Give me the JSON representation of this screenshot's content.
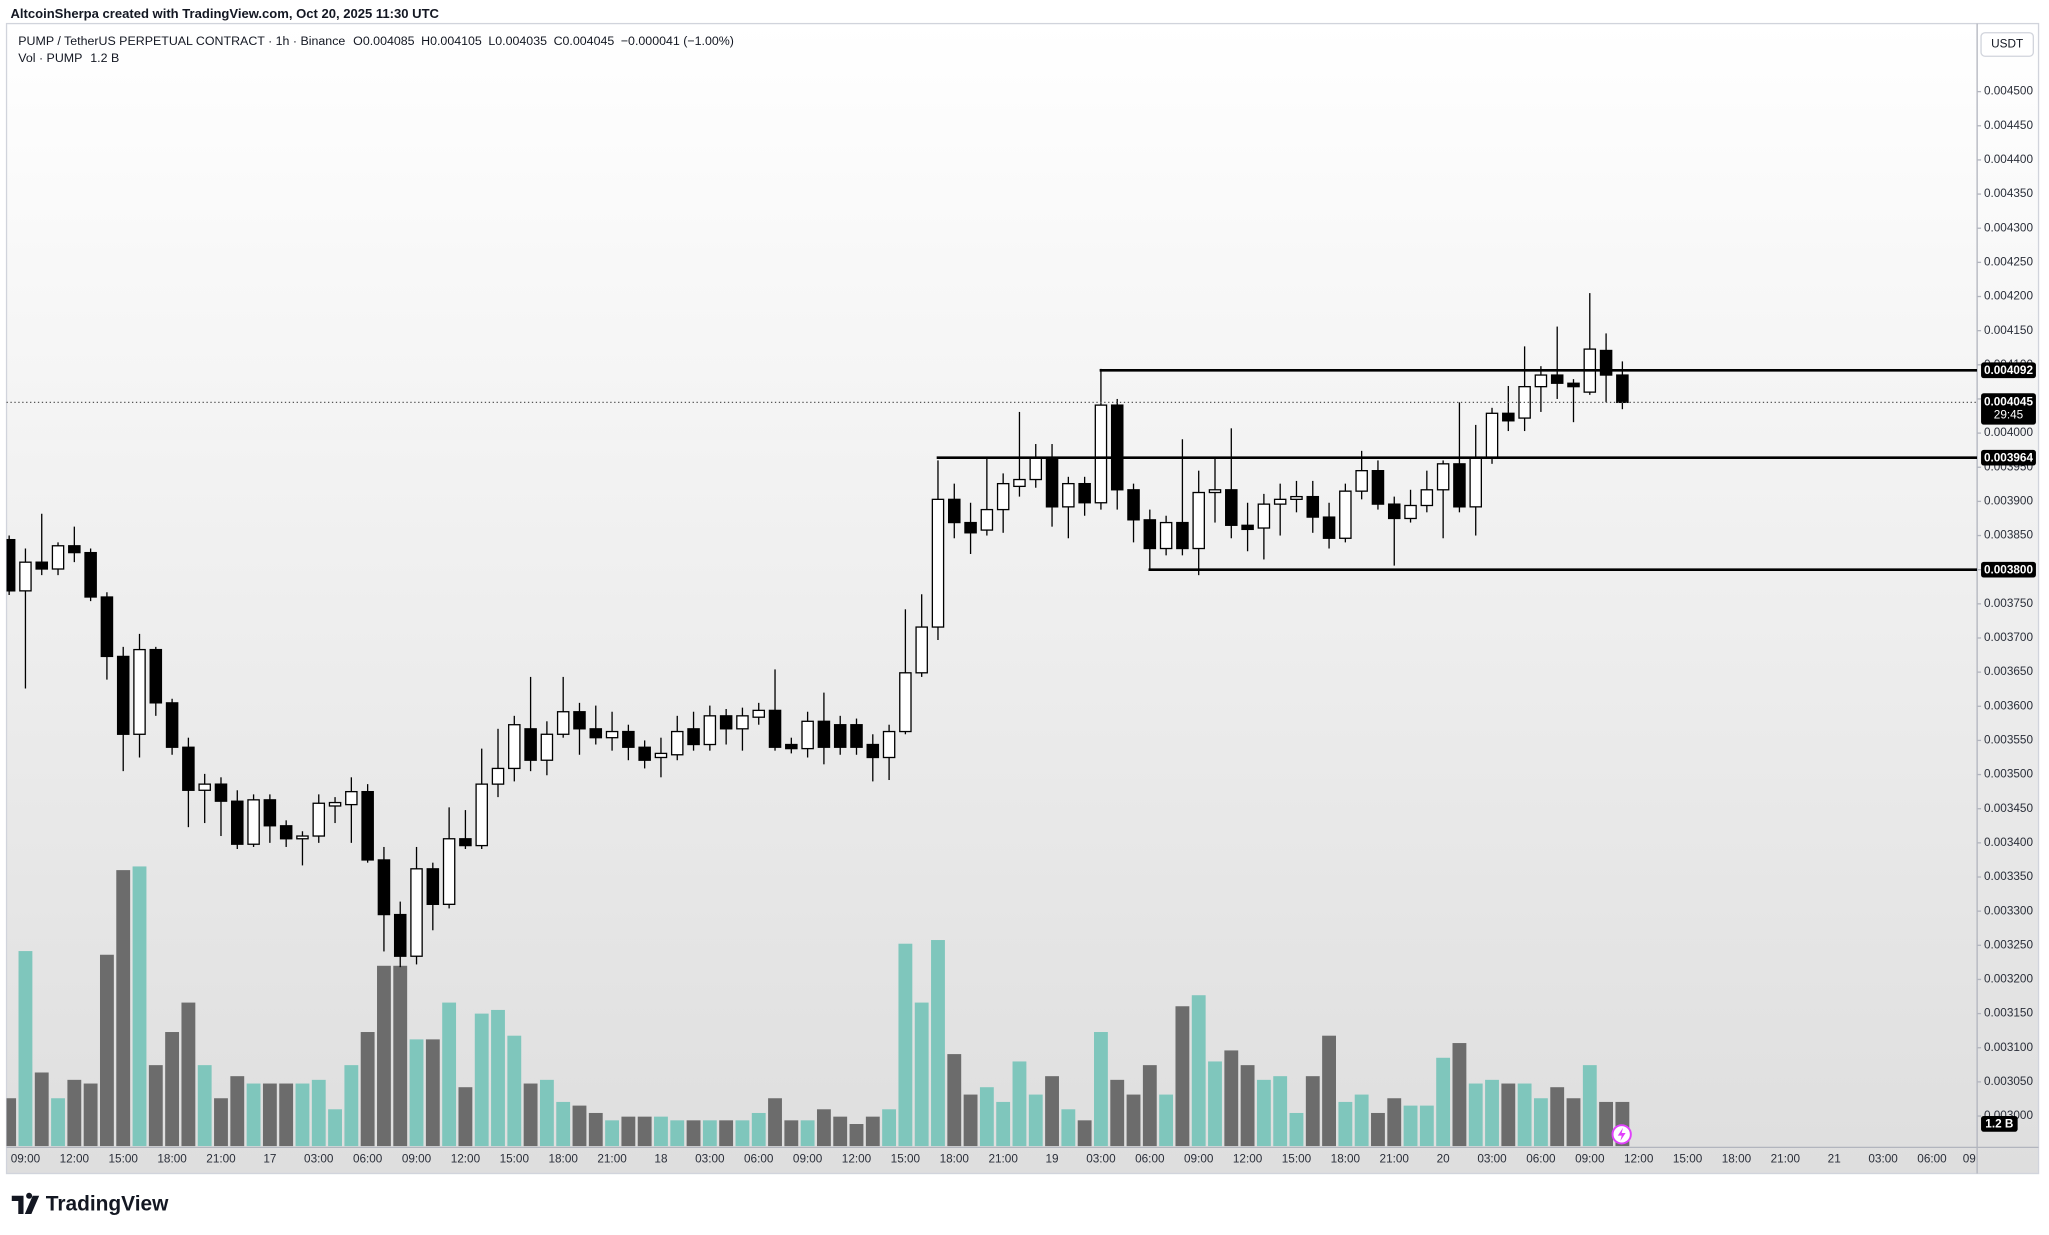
{
  "header": {
    "creator": "AltcoinSherpa created with TradingView.com, Oct 20, 2025 11:30 UTC",
    "symbol": "PUMP / TetherUS PERPETUAL CONTRACT · 1h · Binance",
    "o": "O",
    "h": "H",
    "l": "L",
    "c": "C",
    "change": "−0.000041 (−1.00%)",
    "volume_title": "Vol · PUMP",
    "currency": "USDT",
    "countdown": "29:45"
  },
  "footer": {
    "brand": "TradingView"
  },
  "chart_data": {
    "type": "candlestick",
    "grid": false,
    "up_color": "#ffffff",
    "down_color": "#000000",
    "wick_color": "#000000",
    "volume_up_color": "#7fc6bc",
    "volume_down_color": "#6c6c6c",
    "ylim": [
      0.002956,
      0.004592
    ],
    "yticks": [
      {
        "value": 0.0045,
        "label": "0.004500"
      },
      {
        "value": 0.00445,
        "label": "0.004450"
      },
      {
        "value": 0.0044,
        "label": "0.004400"
      },
      {
        "value": 0.00435,
        "label": "0.004350"
      },
      {
        "value": 0.0043,
        "label": "0.004300"
      },
      {
        "value": 0.00425,
        "label": "0.004250"
      },
      {
        "value": 0.0042,
        "label": "0.004200"
      },
      {
        "value": 0.00415,
        "label": "0.004150"
      },
      {
        "value": 0.0041,
        "label": "0.004100"
      },
      {
        "value": 0.00405,
        "label": "0.004050"
      },
      {
        "value": 0.004,
        "label": "0.004000"
      },
      {
        "value": 0.00395,
        "label": "0.003950"
      },
      {
        "value": 0.0039,
        "label": "0.003900"
      },
      {
        "value": 0.00385,
        "label": "0.003850"
      },
      {
        "value": 0.0038,
        "label": "0.003800"
      },
      {
        "value": 0.00375,
        "label": "0.003750"
      },
      {
        "value": 0.0037,
        "label": "0.003700"
      },
      {
        "value": 0.00365,
        "label": "0.003650"
      },
      {
        "value": 0.0036,
        "label": "0.003600"
      },
      {
        "value": 0.00355,
        "label": "0.003550"
      },
      {
        "value": 0.0035,
        "label": "0.003500"
      },
      {
        "value": 0.00345,
        "label": "0.003450"
      },
      {
        "value": 0.0034,
        "label": "0.003400"
      },
      {
        "value": 0.00335,
        "label": "0.003350"
      },
      {
        "value": 0.0033,
        "label": "0.003300"
      },
      {
        "value": 0.00325,
        "label": "0.003250"
      },
      {
        "value": 0.0032,
        "label": "0.003200"
      },
      {
        "value": 0.00315,
        "label": "0.003150"
      },
      {
        "value": 0.0031,
        "label": "0.003100"
      },
      {
        "value": 0.00305,
        "label": "0.003050"
      },
      {
        "value": 0.003,
        "label": "0.003000"
      }
    ],
    "categories": [
      null,
      "09:00",
      null,
      null,
      "12:00",
      null,
      null,
      "15:00",
      null,
      null,
      "18:00",
      null,
      null,
      "21:00",
      null,
      null,
      "17",
      null,
      null,
      "03:00",
      null,
      null,
      "06:00",
      null,
      null,
      "09:00",
      null,
      null,
      "12:00",
      null,
      null,
      "15:00",
      null,
      null,
      "18:00",
      null,
      null,
      "21:00",
      null,
      null,
      "18",
      null,
      null,
      "03:00",
      null,
      null,
      "06:00",
      null,
      null,
      "09:00",
      null,
      null,
      "12:00",
      null,
      null,
      "15:00",
      null,
      null,
      "18:00",
      null,
      null,
      "21:00",
      null,
      null,
      "19",
      null,
      null,
      "03:00",
      null,
      null,
      "06:00",
      null,
      null,
      "09:00",
      null,
      null,
      "12:00",
      null,
      null,
      "15:00",
      null,
      null,
      "18:00",
      null,
      null,
      "21:00",
      null,
      null,
      "20",
      null,
      null,
      "03:00",
      null,
      null,
      "06:00",
      null,
      null,
      "09:00",
      null,
      null,
      "12:00",
      null,
      null,
      "15:00",
      null,
      null,
      "18:00",
      null,
      null,
      "21:00",
      null,
      null,
      "21",
      null,
      null,
      "03:00",
      null,
      null,
      "06:00",
      null,
      null,
      "09"
    ],
    "open": [
      0.003844,
      0.003769,
      0.003811,
      0.003801,
      0.003835,
      0.003825,
      0.00376,
      0.003673,
      0.003559,
      0.003683,
      0.003605,
      0.00354,
      0.003477,
      0.003486,
      0.003461,
      0.003398,
      0.003463,
      0.003425,
      0.003406,
      0.00341,
      0.003454,
      0.003456,
      0.003475,
      0.003375,
      0.003295,
      0.003234,
      0.003362,
      0.00331,
      0.003406,
      0.003396,
      0.003486,
      0.003509,
      0.003567,
      0.003521,
      0.003559,
      0.003592,
      0.003567,
      0.003554,
      0.003563,
      0.00354,
      0.003525,
      0.003529,
      0.003567,
      0.003544,
      0.003586,
      0.003567,
      0.003584,
      0.003594,
      0.003544,
      0.003538,
      0.003578,
      0.003573,
      0.003573,
      0.003544,
      0.003525,
      0.003563,
      0.003649,
      0.003716,
      0.003903,
      0.003869,
      0.003858,
      0.003888,
      0.003922,
      0.003932,
      0.003964,
      0.003892,
      0.003926,
      0.003898,
      0.004041,
      0.003917,
      0.003873,
      0.003831,
      0.003869,
      0.003831,
      0.003913,
      0.003917,
      0.003865,
      0.003861,
      0.003896,
      0.003903,
      0.003907,
      0.003877,
      0.003846,
      0.003915,
      0.003945,
      0.003896,
      0.003875,
      0.003894,
      0.003917,
      0.003955,
      0.003892,
      0.003964,
      0.004029,
      0.004022,
      0.004068,
      0.004085,
      0.004073,
      0.00406,
      0.004121,
      0.004085,
      null,
      null,
      null,
      null,
      null,
      null,
      null,
      null,
      null,
      null,
      null,
      null,
      null,
      null,
      null,
      null,
      null,
      null,
      null,
      null,
      null,
      null
    ],
    "high": [
      0.00385,
      0.003831,
      0.003882,
      0.00384,
      0.003863,
      0.003831,
      0.003767,
      0.003687,
      0.003706,
      0.003687,
      0.003611,
      0.003554,
      0.003501,
      0.003496,
      0.003477,
      0.003471,
      0.003471,
      0.003433,
      0.003417,
      0.003471,
      0.003467,
      0.003496,
      0.003486,
      0.003394,
      0.003314,
      0.003394,
      0.003371,
      0.003452,
      0.003448,
      0.003538,
      0.003567,
      0.003586,
      0.003643,
      0.003578,
      0.003643,
      0.003605,
      0.003601,
      0.003592,
      0.003573,
      0.00355,
      0.003554,
      0.003586,
      0.003592,
      0.003601,
      0.003596,
      0.003598,
      0.003605,
      0.003654,
      0.003554,
      0.003592,
      0.00362,
      0.003586,
      0.003582,
      0.003559,
      0.003573,
      0.003742,
      0.003764,
      0.00396,
      0.003926,
      0.003898,
      0.003964,
      0.003941,
      0.004031,
      0.003984,
      0.003984,
      0.003936,
      0.003936,
      0.004094,
      0.00405,
      0.003926,
      0.003888,
      0.003879,
      0.003991,
      0.003945,
      0.003964,
      0.004007,
      0.003898,
      0.003911,
      0.003926,
      0.00393,
      0.00393,
      0.003898,
      0.003926,
      0.003974,
      0.00396,
      0.003907,
      0.003917,
      0.003945,
      0.00396,
      0.004045,
      0.004012,
      0.004037,
      0.004069,
      0.004127,
      0.004098,
      0.004156,
      0.004079,
      0.004205,
      0.004146,
      0.004105,
      null,
      null,
      null,
      null,
      null,
      null,
      null,
      null,
      null,
      null,
      null,
      null,
      null,
      null,
      null,
      null,
      null,
      null,
      null,
      null,
      null,
      null
    ],
    "low": [
      0.003763,
      0.003626,
      0.003792,
      0.003792,
      0.003811,
      0.003754,
      0.003639,
      0.003505,
      0.003525,
      0.003586,
      0.003529,
      0.003423,
      0.003429,
      0.00341,
      0.003391,
      0.003394,
      0.0034,
      0.003394,
      0.003367,
      0.0034,
      0.003429,
      0.0034,
      0.003371,
      0.003241,
      0.003218,
      0.003222,
      0.003272,
      0.003304,
      0.003391,
      0.003391,
      0.003467,
      0.00349,
      0.003505,
      0.003499,
      0.003554,
      0.003529,
      0.003544,
      0.003535,
      0.003521,
      0.003509,
      0.003496,
      0.003521,
      0.003535,
      0.003535,
      0.003544,
      0.003535,
      0.003573,
      0.003535,
      0.003531,
      0.003525,
      0.003515,
      0.003529,
      0.003529,
      0.00349,
      0.003492,
      0.003559,
      0.003643,
      0.003697,
      0.003846,
      0.003823,
      0.00385,
      0.003854,
      0.003907,
      0.00392,
      0.003863,
      0.003846,
      0.003879,
      0.003888,
      0.003888,
      0.00384,
      0.003801,
      0.003821,
      0.003821,
      0.003792,
      0.003869,
      0.003846,
      0.003827,
      0.003815,
      0.00385,
      0.003884,
      0.003854,
      0.003831,
      0.00384,
      0.003903,
      0.003888,
      0.003806,
      0.003869,
      0.003884,
      0.003846,
      0.003884,
      0.00385,
      0.003955,
      0.004003,
      0.004003,
      0.004031,
      0.00405,
      0.004016,
      0.004056,
      0.004045,
      0.004035,
      null,
      null,
      null,
      null,
      null,
      null,
      null,
      null,
      null,
      null,
      null,
      null,
      null,
      null,
      null,
      null,
      null,
      null,
      null,
      null,
      null,
      null
    ],
    "close": [
      0.003769,
      0.003811,
      0.003801,
      0.003835,
      0.003825,
      0.00376,
      0.003673,
      0.003559,
      0.003683,
      0.003605,
      0.00354,
      0.003477,
      0.003486,
      0.003461,
      0.003398,
      0.003463,
      0.003425,
      0.003406,
      0.00341,
      0.003458,
      0.003459,
      0.003475,
      0.003375,
      0.003295,
      0.003234,
      0.003362,
      0.00331,
      0.003406,
      0.003396,
      0.003486,
      0.003509,
      0.003573,
      0.003521,
      0.003559,
      0.003592,
      0.003567,
      0.003554,
      0.003563,
      0.00354,
      0.003521,
      0.003531,
      0.003563,
      0.003544,
      0.003586,
      0.003567,
      0.003586,
      0.003594,
      0.00354,
      0.003538,
      0.003578,
      0.00354,
      0.00354,
      0.00354,
      0.003525,
      0.003563,
      0.003649,
      0.003716,
      0.003903,
      0.003869,
      0.003854,
      0.003888,
      0.003926,
      0.003932,
      0.003964,
      0.003892,
      0.003926,
      0.003898,
      0.004041,
      0.003917,
      0.003873,
      0.003831,
      0.003869,
      0.003831,
      0.003913,
      0.003917,
      0.003865,
      0.003859,
      0.003896,
      0.003903,
      0.003907,
      0.003877,
      0.003846,
      0.003915,
      0.003945,
      0.003896,
      0.003875,
      0.003894,
      0.003917,
      0.003955,
      0.003892,
      0.003964,
      0.004029,
      0.004018,
      0.004068,
      0.004085,
      0.004073,
      0.004068,
      0.004123,
      0.004085,
      0.004045,
      null,
      null,
      null,
      null,
      null,
      null,
      null,
      null,
      null,
      null,
      null,
      null,
      null,
      null,
      null,
      null,
      null,
      null,
      null,
      null,
      null,
      null
    ],
    "volume": [
      1.3,
      5.3,
      2.0,
      1.3,
      1.8,
      1.7,
      5.2,
      7.5,
      7.6,
      2.2,
      3.1,
      3.9,
      2.2,
      1.3,
      1.9,
      1.7,
      1.7,
      1.7,
      1.7,
      1.8,
      1.0,
      2.2,
      3.1,
      4.9,
      4.9,
      2.9,
      2.9,
      3.9,
      1.6,
      3.6,
      3.7,
      3.0,
      1.7,
      1.8,
      1.2,
      1.1,
      0.9,
      0.7,
      0.8,
      0.8,
      0.8,
      0.7,
      0.7,
      0.7,
      0.7,
      0.7,
      0.9,
      1.3,
      0.7,
      0.7,
      1.0,
      0.8,
      0.6,
      0.8,
      1.0,
      5.5,
      3.9,
      5.6,
      2.5,
      1.4,
      1.6,
      1.2,
      2.3,
      1.4,
      1.9,
      1.0,
      0.7,
      3.1,
      1.8,
      1.4,
      2.2,
      1.4,
      3.8,
      4.1,
      2.3,
      2.6,
      2.2,
      1.8,
      1.9,
      0.9,
      1.9,
      3.0,
      1.2,
      1.4,
      0.9,
      1.3,
      1.1,
      1.1,
      2.4,
      2.8,
      1.7,
      1.8,
      1.7,
      1.7,
      1.3,
      1.6,
      1.3,
      2.2,
      1.2,
      1.2,
      null,
      null,
      null,
      null,
      null,
      null,
      null,
      null,
      null,
      null,
      null,
      null,
      null,
      null,
      null,
      null,
      null,
      null,
      null,
      null,
      null,
      null
    ],
    "volume_last_label": "1.2 B",
    "levels": [
      0.004092,
      0.003964,
      {
        "value": 0.0038,
        "label": "0.003800"
      }
    ]
  }
}
